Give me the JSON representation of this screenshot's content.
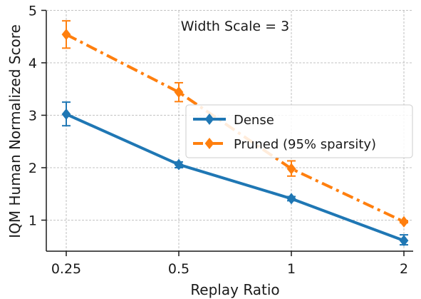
{
  "chart_data": {
    "type": "line",
    "title": "",
    "annotation": "Width Scale = 3",
    "xlabel": "Replay Ratio",
    "ylabel": "IQM Human Normalized Score",
    "x": [
      "0.25",
      "0.5",
      "1",
      "2"
    ],
    "ylim": [
      0.5,
      5
    ],
    "yticks": [
      "1",
      "2",
      "3",
      "4",
      "5"
    ],
    "grid": true,
    "legend_position": "center-right",
    "series": [
      {
        "name": "Dense",
        "color": "#1f77b4",
        "linestyle": "solid",
        "marker": "diamond",
        "values": [
          3.02,
          2.06,
          1.41,
          0.61
        ],
        "err_low": [
          2.8,
          2.0,
          1.37,
          0.53
        ],
        "err_high": [
          3.25,
          2.11,
          1.45,
          0.72
        ]
      },
      {
        "name": "Pruned (95% sparsity)",
        "color": "#ff7f0e",
        "linestyle": "dashdot",
        "marker": "diamond",
        "values": [
          4.54,
          3.44,
          1.98,
          0.97
        ],
        "err_low": [
          4.28,
          3.26,
          1.84,
          0.95
        ],
        "err_high": [
          4.8,
          3.62,
          2.13,
          0.99
        ]
      }
    ]
  }
}
